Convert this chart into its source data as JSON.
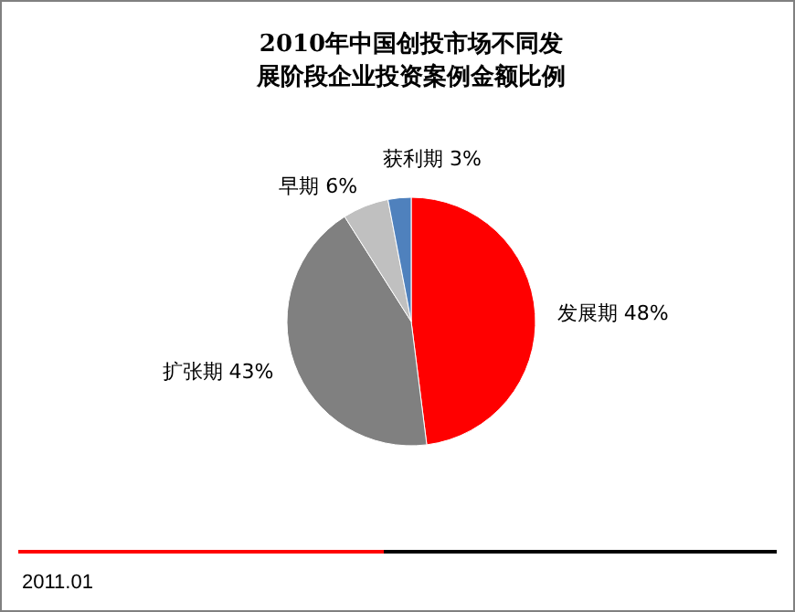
{
  "chart_data": {
    "type": "pie",
    "title": "2010年中国创投市场不同发展阶段企业投资案例金额比例",
    "categories": [
      "发展期",
      "扩张期",
      "早期",
      "获利期"
    ],
    "values": [
      48,
      43,
      6,
      3
    ],
    "colors": [
      "#ff0000",
      "#808080",
      "#c0c0c0",
      "#4f81bd"
    ],
    "value_labels": [
      "48%",
      "43%",
      "6%",
      "3%"
    ],
    "annotations": [
      "2011.01"
    ]
  }
}
